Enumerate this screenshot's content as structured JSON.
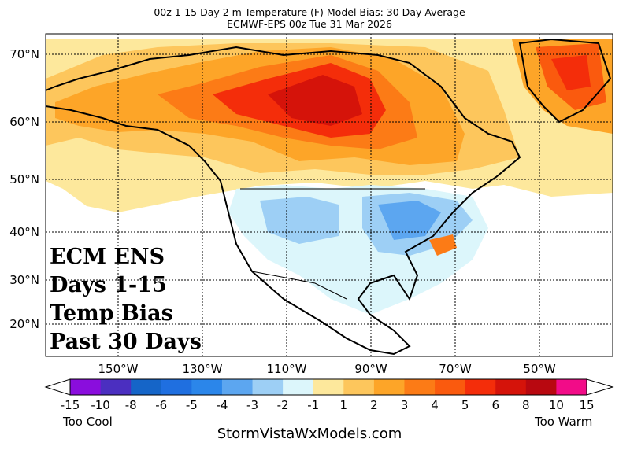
{
  "header": {
    "title_line1": "00z 1-15 Day 2 m Temperature (F) Model Bias: 30 Day Average",
    "title_line2": "ECMWF-EPS 00z Tue 31 Mar 2026"
  },
  "map": {
    "lat_labels": [
      "70°N",
      "60°N",
      "50°N",
      "40°N",
      "30°N",
      "20°N"
    ],
    "lon_labels": [
      "150°W",
      "130°W",
      "110°W",
      "90°W",
      "70°W",
      "50°W"
    ],
    "overlay_lines": [
      "ECM ENS",
      "Days 1-15",
      "Temp Bias",
      "Past 30 Days"
    ]
  },
  "colorbar": {
    "labels": [
      "-15",
      "-10",
      "-8",
      "-6",
      "-5",
      "-4",
      "-3",
      "-2",
      "-1",
      "1",
      "2",
      "3",
      "4",
      "5",
      "6",
      "8",
      "10",
      "15"
    ],
    "colors": [
      "#8a0ddd",
      "#4b2fc0",
      "#1565c8",
      "#1f6fe0",
      "#2b86ea",
      "#5ca6f0",
      "#9dcff5",
      "#dcf6fb",
      "#ffffff",
      "#fde89c",
      "#fdc65c",
      "#fda528",
      "#fc7b16",
      "#fa5a0e",
      "#f42d0a",
      "#d5130a",
      "#b80810",
      "#f20c88"
    ],
    "left_caption": "Too Cool",
    "right_caption": "Too Warm"
  },
  "footer": {
    "site": "StormVistaWxModels.com"
  }
}
